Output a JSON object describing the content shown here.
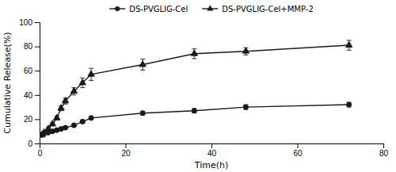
{
  "chart_data": {
    "type": "line",
    "xlabel": "Time(h)",
    "ylabel": "Cumulative Release(%)",
    "x": [
      0.5,
      1,
      2,
      3,
      4,
      5,
      6,
      8,
      10,
      12,
      24,
      36,
      48,
      72
    ],
    "series": [
      {
        "name": "DS-PVGLIG-Cel",
        "color": "#1a1a1a",
        "marker": "circle",
        "values": [
          7,
          8,
          9,
          10,
          11,
          12,
          13,
          15,
          18,
          21,
          25,
          27,
          30,
          32
        ],
        "errors": [
          0.8,
          0.8,
          0.8,
          0.8,
          0.8,
          0.8,
          0.8,
          1.0,
          1.0,
          1.2,
          1.5,
          1.8,
          2.0,
          2.0
        ]
      },
      {
        "name": "DS-PVGLIG-Cel+MMP-2",
        "color": "#1a1a1a",
        "marker": "triangle",
        "values": [
          7,
          9,
          12,
          16,
          21,
          29,
          35,
          43,
          50,
          57,
          65,
          74,
          76,
          81
        ],
        "errors": [
          0.8,
          0.8,
          1.0,
          1.2,
          1.5,
          2.0,
          2.5,
          3.0,
          4.0,
          5.0,
          4.5,
          4.0,
          3.0,
          4.0
        ]
      }
    ],
    "xlim": [
      0,
      80
    ],
    "ylim": [
      0,
      100
    ],
    "xticks": [
      0,
      20,
      40,
      60,
      80
    ],
    "yticks": [
      0,
      20,
      40,
      60,
      80,
      100
    ],
    "legend": "top"
  }
}
